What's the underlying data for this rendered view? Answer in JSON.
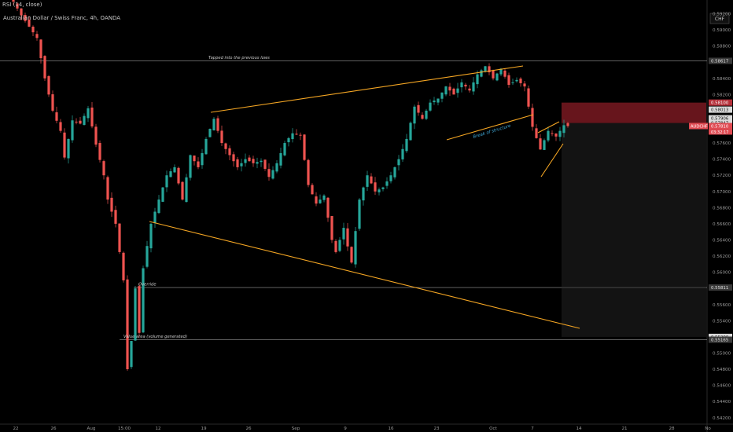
{
  "header": {
    "indicator": "RSI (14, close)",
    "symbol": "Australian Dollar / Swiss Franc, 4h, OANDA",
    "currency": "CHF"
  },
  "chart_data": {
    "type": "candlestick",
    "title": "",
    "ylim": [
      0.5412,
      0.5937
    ],
    "y_ticks": [
      0.592,
      0.59,
      0.588,
      0.584,
      0.582,
      0.58,
      0.578,
      0.576,
      0.574,
      0.572,
      0.57,
      0.568,
      0.566,
      0.564,
      0.562,
      0.56,
      0.558,
      0.556,
      0.554,
      0.552,
      0.55,
      0.548,
      0.546,
      0.544,
      0.542
    ],
    "x_ticks": [
      "22",
      "26",
      "Aug",
      "15:00",
      "12",
      "19",
      "26",
      "Sep",
      "9",
      "16",
      "23",
      "Oct",
      "7",
      "14",
      "21",
      "28",
      "No"
    ],
    "price_path": [
      [
        0,
        0.5935
      ],
      [
        2,
        0.5918
      ],
      [
        4,
        0.5904
      ],
      [
        6,
        0.589
      ],
      [
        8,
        0.584
      ],
      [
        10,
        0.58
      ],
      [
        12,
        0.5775
      ],
      [
        13,
        0.5742
      ],
      [
        15,
        0.5788
      ],
      [
        17,
        0.5784
      ],
      [
        19,
        0.5803
      ],
      [
        21,
        0.5758
      ],
      [
        23,
        0.572
      ],
      [
        24,
        0.569
      ],
      [
        26,
        0.566
      ],
      [
        28,
        0.559
      ],
      [
        29,
        0.548
      ],
      [
        30,
        0.5515
      ],
      [
        31,
        0.558
      ],
      [
        32,
        0.5525
      ],
      [
        33,
        0.5605
      ],
      [
        35,
        0.566
      ],
      [
        37,
        0.569
      ],
      [
        39,
        0.572
      ],
      [
        41,
        0.573
      ],
      [
        43,
        0.569
      ],
      [
        45,
        0.5745
      ],
      [
        47,
        0.573
      ],
      [
        49,
        0.5765
      ],
      [
        51,
        0.579
      ],
      [
        53,
        0.576
      ],
      [
        55,
        0.5745
      ],
      [
        57,
        0.573
      ],
      [
        59,
        0.574
      ],
      [
        61,
        0.5735
      ],
      [
        63,
        0.5738
      ],
      [
        65,
        0.5718
      ],
      [
        67,
        0.5735
      ],
      [
        69,
        0.576
      ],
      [
        71,
        0.5772
      ],
      [
        73,
        0.577
      ],
      [
        75,
        0.5708
      ],
      [
        77,
        0.5685
      ],
      [
        79,
        0.5695
      ],
      [
        81,
        0.564
      ],
      [
        82,
        0.5625
      ],
      [
        84,
        0.5655
      ],
      [
        85,
        0.5632
      ],
      [
        86,
        0.5612
      ],
      [
        88,
        0.569
      ],
      [
        90,
        0.572
      ],
      [
        92,
        0.57
      ],
      [
        94,
        0.5705
      ],
      [
        96,
        0.572
      ],
      [
        98,
        0.574
      ],
      [
        100,
        0.5765
      ],
      [
        102,
        0.5805
      ],
      [
        104,
        0.579
      ],
      [
        106,
        0.581
      ],
      [
        108,
        0.5815
      ],
      [
        110,
        0.583
      ],
      [
        112,
        0.582
      ],
      [
        114,
        0.5835
      ],
      [
        116,
        0.5825
      ],
      [
        118,
        0.5845
      ],
      [
        120,
        0.5855
      ],
      [
        122,
        0.584
      ],
      [
        124,
        0.5852
      ],
      [
        126,
        0.5832
      ],
      [
        128,
        0.5838
      ],
      [
        130,
        0.583
      ],
      [
        132,
        0.578
      ],
      [
        134,
        0.5752
      ],
      [
        136,
        0.5775
      ],
      [
        138,
        0.5768
      ],
      [
        140,
        0.5782
      ],
      [
        141,
        0.5781
      ]
    ],
    "last_price": 0.5781,
    "levels": [
      {
        "price": 0.58617,
        "label": "Tapped into the previous lows"
      },
      {
        "price": 0.55811,
        "label": "Override"
      },
      {
        "price": 0.55165,
        "label": "Value area (volume generated)"
      }
    ],
    "annotations": [
      "Break of structure"
    ],
    "price_labels": [
      {
        "price": 0.58617,
        "text": "0.58617",
        "color": "#e0e0e0",
        "bg": "#3a3a3a"
      },
      {
        "price": 0.581,
        "text": "0.58100",
        "color": "#ffffff",
        "bg": "#b5303a"
      },
      {
        "price": 0.58013,
        "text": "0.58013",
        "color": "#1a1a1a",
        "bg": "#d9d9d9"
      },
      {
        "price": 0.57906,
        "text": "0.57906",
        "color": "#1a1a1a",
        "bg": "#d9d9d9"
      },
      {
        "price": 0.57847,
        "text": "0.57847",
        "color": "#1a1a1a",
        "bg": "#d9d9d9"
      },
      {
        "price": 0.5781,
        "text": "0.57810",
        "color": "#ffffff",
        "bg": "#e04a52"
      },
      {
        "price": 0.55811,
        "text": "0.55811",
        "color": "#e0e0e0",
        "bg": "#3a3a3a"
      },
      {
        "price": 0.552,
        "text": "0.55200",
        "color": "#1a1a1a",
        "bg": "#d9d9d9"
      },
      {
        "price": 0.55165,
        "text": "0.55165",
        "color": "#e0e0e0",
        "bg": "#3a3a3a"
      }
    ],
    "symbol_tag": "AUDCHF",
    "countdown": "03:32:17",
    "colors": {
      "up": "#26a69a",
      "down": "#ef5350",
      "trendline": "#f5a623",
      "level": "#9a9a9a"
    }
  }
}
